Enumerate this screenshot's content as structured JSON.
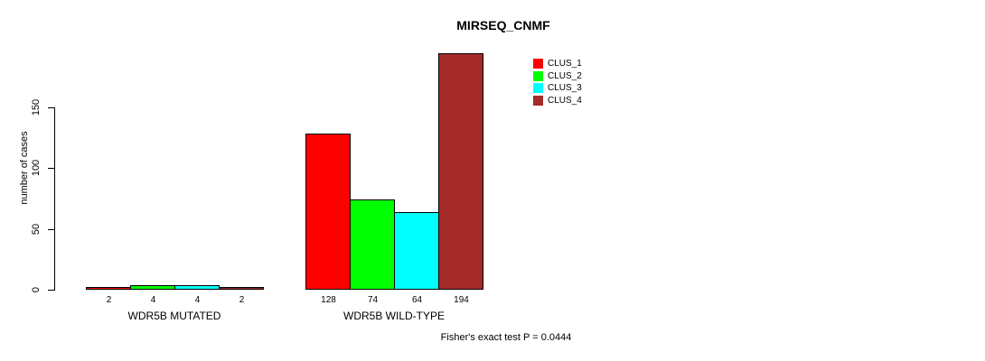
{
  "chart_data": {
    "type": "bar",
    "title": "MIRSEQ_CNMF",
    "ylabel": "number of cases",
    "xlabel": "",
    "yticks": [
      0,
      50,
      100,
      150
    ],
    "ylim": [
      0,
      200
    ],
    "grid": false,
    "legend_position": "top-right-inside",
    "categories": [
      "WDR5B MUTATED",
      "WDR5B WILD-TYPE"
    ],
    "series": [
      {
        "name": "CLUS_1",
        "color": "#FF0000",
        "values": [
          2,
          128
        ]
      },
      {
        "name": "CLUS_2",
        "color": "#00FF00",
        "values": [
          4,
          74
        ]
      },
      {
        "name": "CLUS_3",
        "color": "#00FFFF",
        "values": [
          4,
          64
        ]
      },
      {
        "name": "CLUS_4",
        "color": "#A52A2A",
        "values": [
          2,
          194
        ]
      }
    ],
    "bar_border_color": "#000000",
    "annotation": "Fisher's exact test P = 0.0444"
  }
}
